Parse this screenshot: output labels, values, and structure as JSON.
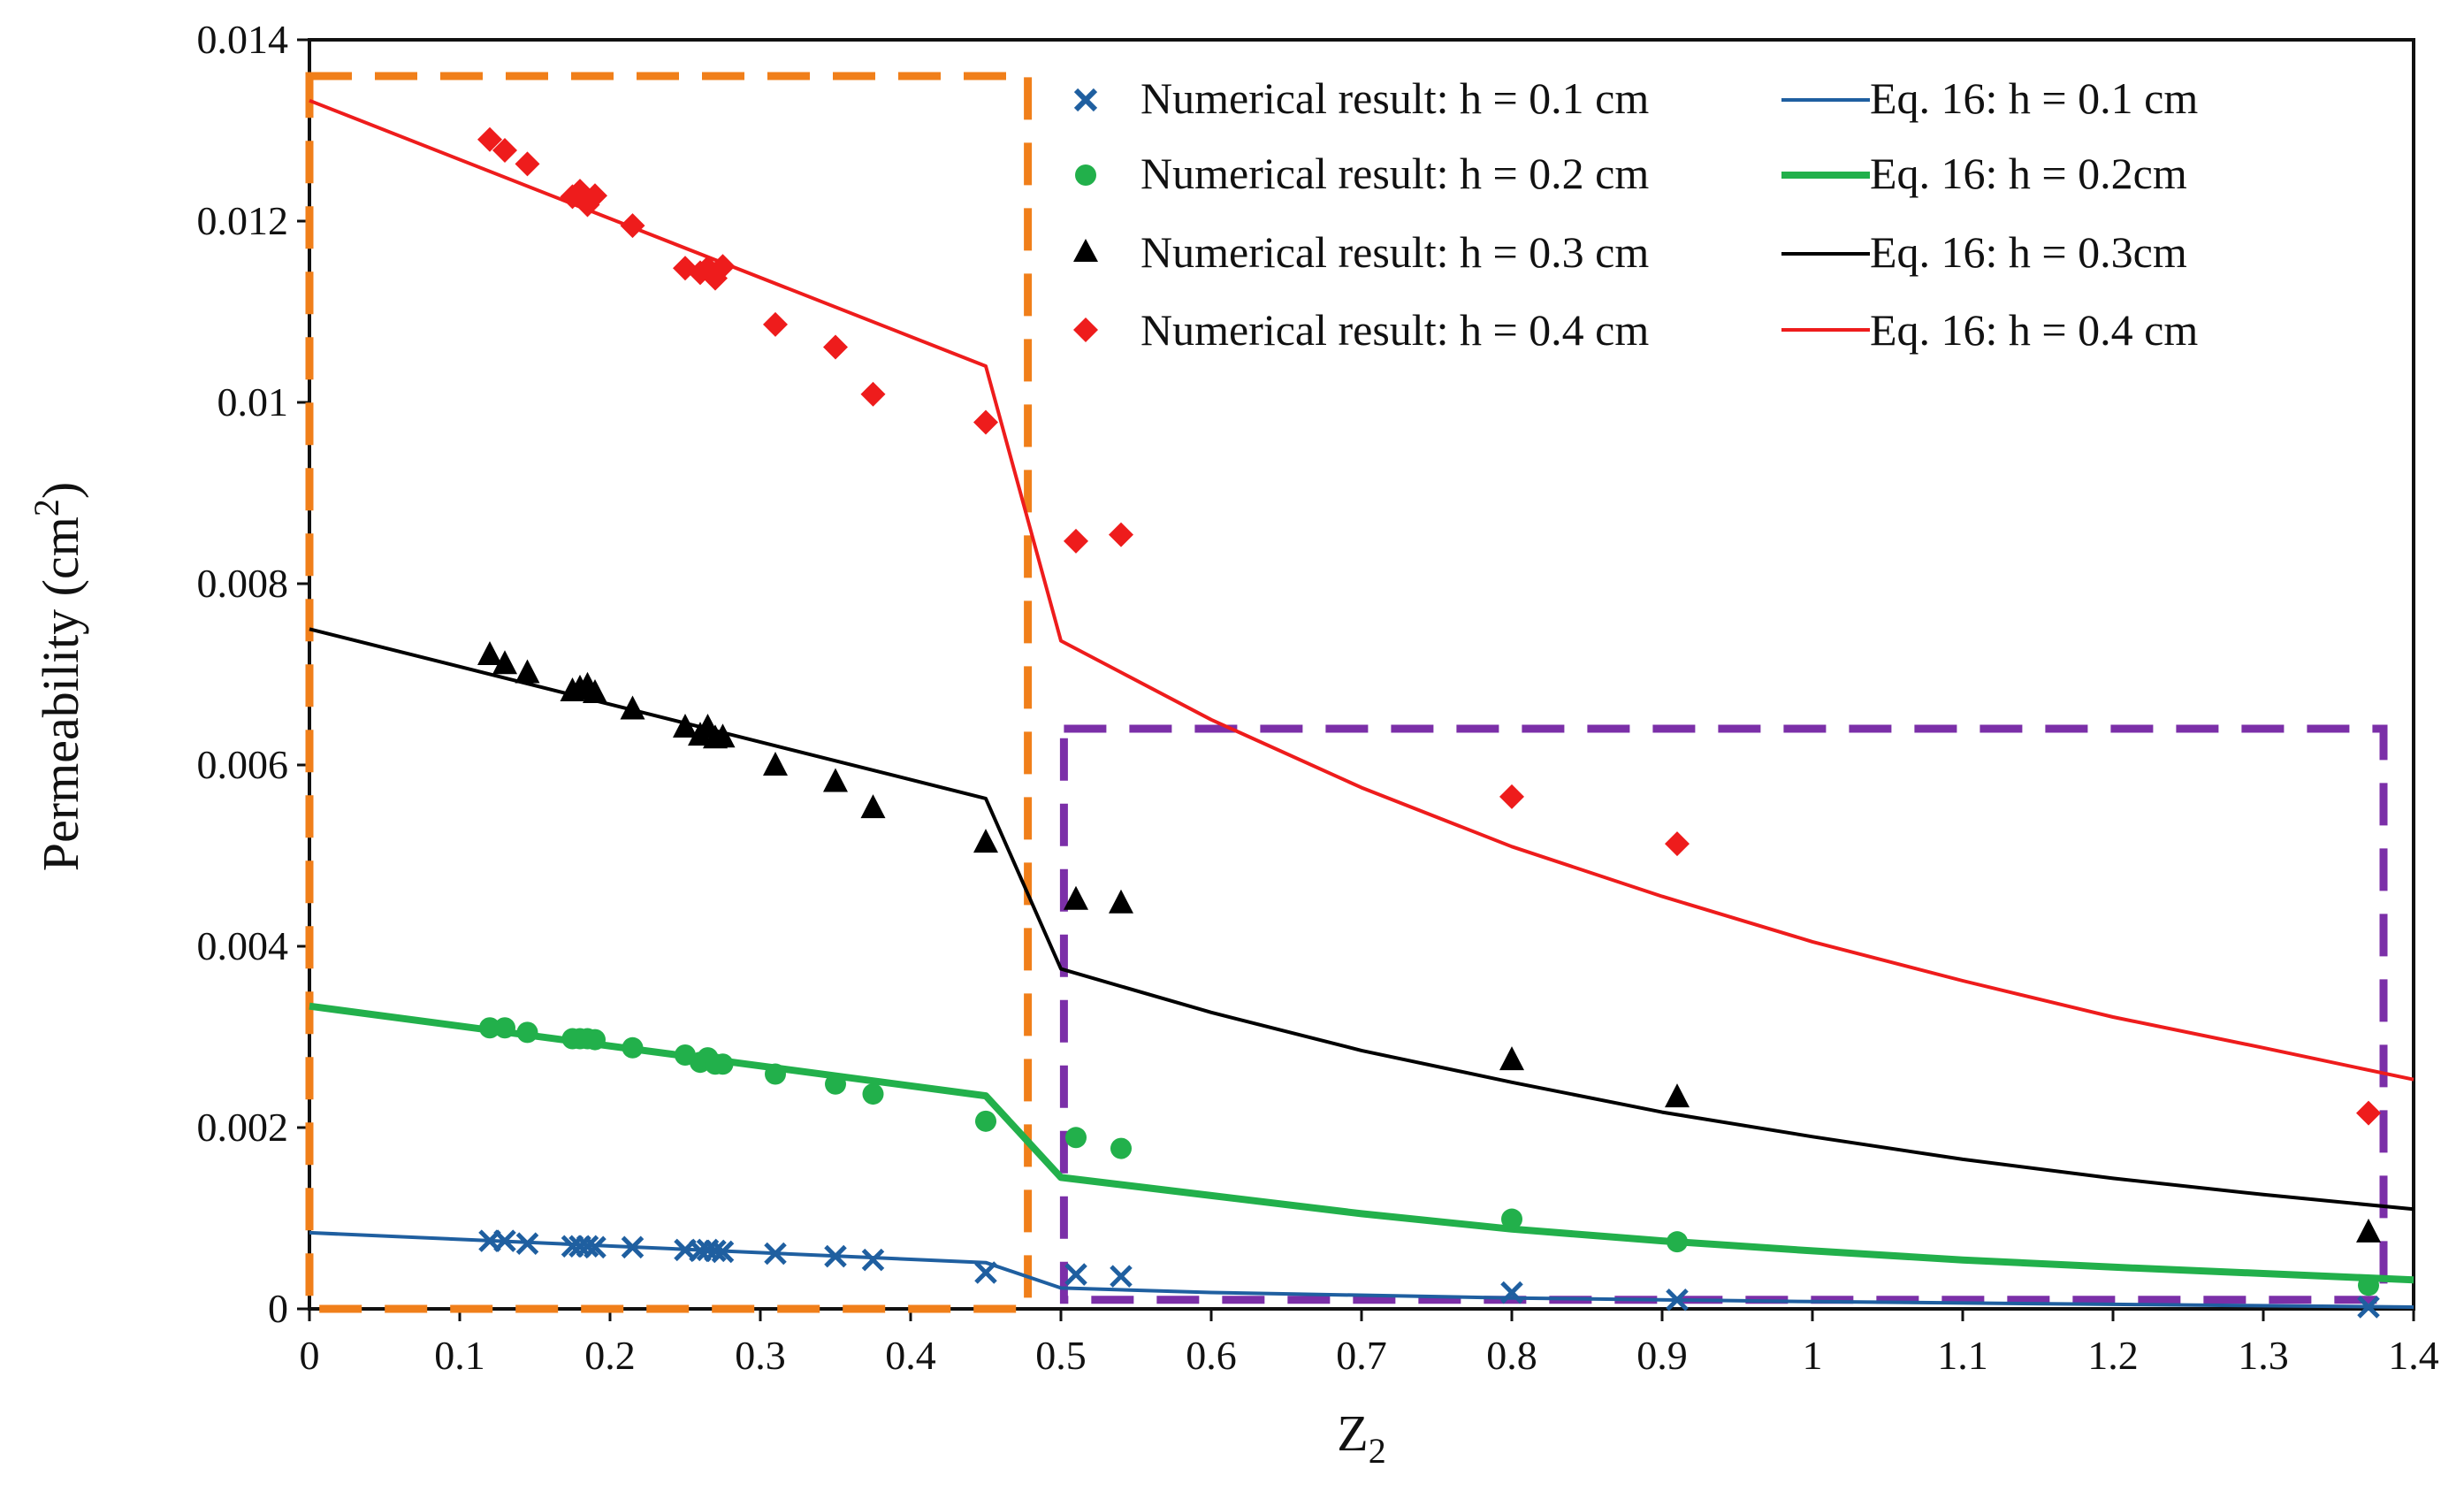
{
  "chart_data": {
    "type": "scatter",
    "title": "",
    "xlabel": "Z",
    "xlabel_sub": "2",
    "ylabel": "Permeability  (cm",
    "ylabel_sup": "2",
    "ylabel_close": ")",
    "xlim": [
      0,
      1.4
    ],
    "ylim": [
      0,
      0.014
    ],
    "grid": false,
    "legend_position": "top-right",
    "x_ticks": [
      {
        "value": 0,
        "label": "0"
      },
      {
        "value": 0.1,
        "label": "0.1"
      },
      {
        "value": 0.2,
        "label": "0.2"
      },
      {
        "value": 0.3,
        "label": "0.3"
      },
      {
        "value": 0.4,
        "label": "0.4"
      },
      {
        "value": 0.5,
        "label": "0.5"
      },
      {
        "value": 0.6,
        "label": "0.6"
      },
      {
        "value": 0.7,
        "label": "0.7"
      },
      {
        "value": 0.8,
        "label": "0.8"
      },
      {
        "value": 0.9,
        "label": "0.9"
      },
      {
        "value": 1.0,
        "label": "1"
      },
      {
        "value": 1.1,
        "label": "1.1"
      },
      {
        "value": 1.2,
        "label": "1.2"
      },
      {
        "value": 1.3,
        "label": "1.3"
      },
      {
        "value": 1.4,
        "label": "1.4"
      }
    ],
    "y_ticks": [
      {
        "value": 0,
        "label": "0"
      },
      {
        "value": 0.002,
        "label": "0.002"
      },
      {
        "value": 0.004,
        "label": "0.004"
      },
      {
        "value": 0.006,
        "label": "0.006"
      },
      {
        "value": 0.008,
        "label": "0.008"
      },
      {
        "value": 0.01,
        "label": "0.01"
      },
      {
        "value": 0.012,
        "label": "0.012"
      },
      {
        "value": 0.014,
        "label": "0.014"
      }
    ],
    "scatter_series": [
      {
        "name": "Numerical result: h = 0.1 cm",
        "marker": "x",
        "color": "#1f5fa0",
        "x": [
          0.12,
          0.13,
          0.145,
          0.175,
          0.18,
          0.185,
          0.19,
          0.215,
          0.25,
          0.26,
          0.265,
          0.27,
          0.275,
          0.31,
          0.35,
          0.375,
          0.45,
          0.51,
          0.54,
          0.8,
          0.91,
          1.37
        ],
        "y": [
          0.00075,
          0.00075,
          0.00072,
          0.00069,
          0.00069,
          0.00069,
          0.00068,
          0.00068,
          0.00065,
          0.00064,
          0.00065,
          0.00064,
          0.00063,
          0.00061,
          0.00058,
          0.00054,
          0.0004,
          0.00038,
          0.00036,
          0.00018,
          0.0001,
          2e-05
        ]
      },
      {
        "name": "Numerical result: h = 0.2 cm",
        "marker": "circle",
        "color": "#22b04b",
        "x": [
          0.12,
          0.13,
          0.145,
          0.175,
          0.18,
          0.185,
          0.19,
          0.215,
          0.25,
          0.26,
          0.265,
          0.27,
          0.275,
          0.31,
          0.35,
          0.375,
          0.45,
          0.51,
          0.54,
          0.8,
          0.91,
          1.37
        ],
        "y": [
          0.0031,
          0.0031,
          0.00305,
          0.00298,
          0.00298,
          0.00298,
          0.00297,
          0.00288,
          0.0028,
          0.00272,
          0.00277,
          0.0027,
          0.0027,
          0.00259,
          0.00248,
          0.00237,
          0.00207,
          0.00189,
          0.00177,
          0.00099,
          0.00074,
          0.00026
        ]
      },
      {
        "name": "Numerical result: h = 0.3 cm",
        "marker": "triangle",
        "color": "#000000",
        "x": [
          0.12,
          0.13,
          0.145,
          0.175,
          0.18,
          0.185,
          0.19,
          0.215,
          0.25,
          0.26,
          0.265,
          0.27,
          0.275,
          0.31,
          0.35,
          0.375,
          0.45,
          0.51,
          0.54,
          0.8,
          0.91,
          1.37
        ],
        "y": [
          0.00722,
          0.00712,
          0.00702,
          0.00682,
          0.00685,
          0.00688,
          0.0068,
          0.00662,
          0.00642,
          0.00633,
          0.00642,
          0.0063,
          0.00631,
          0.006,
          0.00582,
          0.00553,
          0.00515,
          0.00452,
          0.00448,
          0.00275,
          0.00234,
          0.00085
        ]
      },
      {
        "name": "Numerical result: h = 0.4 cm",
        "marker": "diamond",
        "color": "#ee1c1c",
        "x": [
          0.12,
          0.13,
          0.145,
          0.175,
          0.18,
          0.185,
          0.19,
          0.215,
          0.25,
          0.26,
          0.265,
          0.27,
          0.275,
          0.31,
          0.35,
          0.375,
          0.45,
          0.51,
          0.54,
          0.8,
          0.91,
          1.37
        ],
        "y": [
          0.0129,
          0.01278,
          0.01263,
          0.01227,
          0.01233,
          0.01218,
          0.01228,
          0.01195,
          0.01148,
          0.01143,
          0.01148,
          0.01137,
          0.0115,
          0.01086,
          0.01061,
          0.01009,
          0.00978,
          0.00847,
          0.00854,
          0.00565,
          0.00513,
          0.00216
        ]
      }
    ],
    "line_series": [
      {
        "name": "Eq. 16: h = 0.1 cm",
        "color": "#1f5fa0",
        "width": 4,
        "x": [
          0,
          0.45,
          0.5,
          0.6,
          0.8,
          1.0,
          1.2,
          1.4
        ],
        "y": [
          0.00084,
          0.00051,
          0.00023,
          0.00018,
          0.00012,
          8e-05,
          5e-05,
          2e-05
        ]
      },
      {
        "name": "Eq. 16: h = 0.2cm",
        "color": "#22b04b",
        "width": 8,
        "x": [
          0,
          0.45,
          0.5,
          0.6,
          0.7,
          0.8,
          0.9,
          1.0,
          1.1,
          1.2,
          1.3,
          1.4
        ],
        "y": [
          0.00334,
          0.00235,
          0.00145,
          0.00125,
          0.00105,
          0.00088,
          0.00075,
          0.00064,
          0.00054,
          0.00046,
          0.00039,
          0.00032
        ]
      },
      {
        "name": "Eq. 16: h = 0.3cm",
        "color": "#000000",
        "width": 4,
        "x": [
          0,
          0.45,
          0.5,
          0.6,
          0.7,
          0.8,
          0.9,
          1.0,
          1.1,
          1.2,
          1.3,
          1.4
        ],
        "y": [
          0.0075,
          0.00563,
          0.00375,
          0.00327,
          0.00285,
          0.0025,
          0.00217,
          0.0019,
          0.00165,
          0.00144,
          0.00126,
          0.0011
        ]
      },
      {
        "name": "Eq. 16: h = 0.4 cm",
        "color": "#ee1c1c",
        "width": 4,
        "x": [
          0,
          0.45,
          0.5,
          0.6,
          0.7,
          0.8,
          0.9,
          1.0,
          1.1,
          1.2,
          1.3,
          1.4
        ],
        "y": [
          0.01333,
          0.0104,
          0.00737,
          0.0065,
          0.00575,
          0.0051,
          0.00455,
          0.00405,
          0.00362,
          0.00322,
          0.00288,
          0.00253
        ]
      }
    ],
    "highlight_boxes": [
      {
        "name": "low-z2-region-box",
        "color": "#f07f1a",
        "x0": 0,
        "x1": 0.478,
        "y0": 0,
        "y1": 0.0136
      },
      {
        "name": "high-z2-region-box",
        "color": "#7b2fa8",
        "x0": 0.502,
        "x1": 1.38,
        "y0": 0.0001,
        "y1": 0.0064
      }
    ]
  }
}
